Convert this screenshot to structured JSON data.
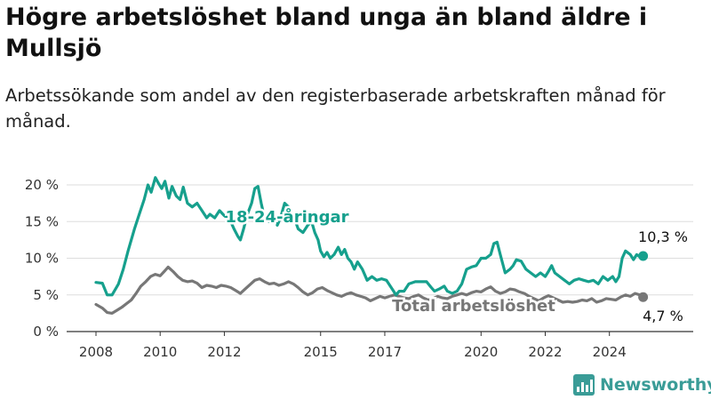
{
  "title": "Högre arbetslöshet bland unga än bland äldre i Mullsjö",
  "subtitle": "Arbetssökande som andel av den registerbaserade arbetskraften månad för månad.",
  "brand": {
    "name": "Newsworthy",
    "color": "#3a9c97"
  },
  "chart_data": {
    "type": "line",
    "ylim": [
      0,
      21.5
    ],
    "yticks": [
      0,
      5,
      10,
      15,
      20
    ],
    "ytick_labels": [
      "0 %",
      "5 %",
      "10 %",
      "15 %",
      "20 %"
    ],
    "xlim": [
      2008.0,
      2025.67
    ],
    "xticks": [
      2008,
      2010,
      2012,
      2015,
      2017,
      2020,
      2022,
      2024
    ],
    "xtick_labels": [
      "2008",
      "2010",
      "2012",
      "2015",
      "2017",
      "2020",
      "2022",
      "2024"
    ],
    "grid": "horizontal",
    "series": [
      {
        "name": "18-24-åringar",
        "color": "#16a08d",
        "end_label": "10,3 %",
        "points": [
          [
            2008.0,
            6.7
          ],
          [
            2008.2,
            6.6
          ],
          [
            2008.35,
            5.0
          ],
          [
            2008.5,
            5.0
          ],
          [
            2008.7,
            6.5
          ],
          [
            2008.85,
            8.5
          ],
          [
            2009.0,
            11.0
          ],
          [
            2009.2,
            14.0
          ],
          [
            2009.35,
            16.0
          ],
          [
            2009.5,
            18.0
          ],
          [
            2009.62,
            20.0
          ],
          [
            2009.72,
            19.0
          ],
          [
            2009.85,
            21.0
          ],
          [
            2009.95,
            20.2
          ],
          [
            2010.05,
            19.5
          ],
          [
            2010.15,
            20.5
          ],
          [
            2010.27,
            18.2
          ],
          [
            2010.37,
            19.8
          ],
          [
            2010.5,
            18.5
          ],
          [
            2010.62,
            18.0
          ],
          [
            2010.72,
            19.7
          ],
          [
            2010.85,
            17.5
          ],
          [
            2011.0,
            17.0
          ],
          [
            2011.15,
            17.5
          ],
          [
            2011.3,
            16.5
          ],
          [
            2011.45,
            15.5
          ],
          [
            2011.55,
            16.0
          ],
          [
            2011.7,
            15.5
          ],
          [
            2011.85,
            16.5
          ],
          [
            2012.0,
            15.8
          ],
          [
            2012.1,
            15.5
          ],
          [
            2012.2,
            15.0
          ],
          [
            2012.3,
            14.0
          ],
          [
            2012.42,
            13.0
          ],
          [
            2012.5,
            12.5
          ],
          [
            2012.6,
            14.0
          ],
          [
            2012.72,
            16.0
          ],
          [
            2012.85,
            17.5
          ],
          [
            2012.95,
            19.5
          ],
          [
            2013.05,
            19.8
          ],
          [
            2013.15,
            17.5
          ],
          [
            2013.25,
            15.5
          ],
          [
            2013.4,
            15.0
          ],
          [
            2013.55,
            16.0
          ],
          [
            2013.65,
            14.5
          ],
          [
            2013.75,
            15.5
          ],
          [
            2013.88,
            17.5
          ],
          [
            2014.0,
            17.0
          ],
          [
            2014.1,
            16.0
          ],
          [
            2014.2,
            15.2
          ],
          [
            2014.3,
            14.0
          ],
          [
            2014.45,
            13.5
          ],
          [
            2014.6,
            14.5
          ],
          [
            2014.72,
            15.0
          ],
          [
            2014.82,
            13.5
          ],
          [
            2014.92,
            12.5
          ],
          [
            2015.0,
            11.0
          ],
          [
            2015.1,
            10.2
          ],
          [
            2015.2,
            10.8
          ],
          [
            2015.3,
            10.0
          ],
          [
            2015.42,
            10.5
          ],
          [
            2015.55,
            11.5
          ],
          [
            2015.65,
            10.5
          ],
          [
            2015.75,
            11.2
          ],
          [
            2015.85,
            10.0
          ],
          [
            2015.95,
            9.5
          ],
          [
            2016.05,
            8.5
          ],
          [
            2016.15,
            9.5
          ],
          [
            2016.3,
            8.5
          ],
          [
            2016.45,
            7.0
          ],
          [
            2016.6,
            7.5
          ],
          [
            2016.75,
            7.0
          ],
          [
            2016.9,
            7.2
          ],
          [
            2017.05,
            7.0
          ],
          [
            2017.2,
            6.0
          ],
          [
            2017.35,
            5.0
          ],
          [
            2017.45,
            5.5
          ],
          [
            2017.6,
            5.5
          ],
          [
            2017.75,
            6.5
          ],
          [
            2017.95,
            6.8
          ],
          [
            2018.15,
            6.8
          ],
          [
            2018.3,
            6.8
          ],
          [
            2018.45,
            6.0
          ],
          [
            2018.55,
            5.5
          ],
          [
            2018.7,
            5.8
          ],
          [
            2018.85,
            6.2
          ],
          [
            2018.95,
            5.5
          ],
          [
            2019.1,
            5.2
          ],
          [
            2019.25,
            5.5
          ],
          [
            2019.4,
            6.5
          ],
          [
            2019.55,
            8.5
          ],
          [
            2019.7,
            8.8
          ],
          [
            2019.85,
            9.0
          ],
          [
            2020.0,
            10.0
          ],
          [
            2020.15,
            10.0
          ],
          [
            2020.3,
            10.5
          ],
          [
            2020.4,
            12.0
          ],
          [
            2020.5,
            12.2
          ],
          [
            2020.6,
            10.5
          ],
          [
            2020.75,
            8.0
          ],
          [
            2020.9,
            8.5
          ],
          [
            2021.0,
            9.0
          ],
          [
            2021.1,
            9.8
          ],
          [
            2021.25,
            9.6
          ],
          [
            2021.4,
            8.5
          ],
          [
            2021.55,
            8.0
          ],
          [
            2021.7,
            7.5
          ],
          [
            2021.85,
            8.0
          ],
          [
            2022.0,
            7.5
          ],
          [
            2022.1,
            8.2
          ],
          [
            2022.2,
            9.0
          ],
          [
            2022.3,
            8.0
          ],
          [
            2022.45,
            7.5
          ],
          [
            2022.6,
            7.0
          ],
          [
            2022.75,
            6.5
          ],
          [
            2022.9,
            7.0
          ],
          [
            2023.05,
            7.2
          ],
          [
            2023.2,
            7.0
          ],
          [
            2023.35,
            6.8
          ],
          [
            2023.5,
            7.0
          ],
          [
            2023.65,
            6.5
          ],
          [
            2023.8,
            7.5
          ],
          [
            2023.95,
            7.0
          ],
          [
            2024.1,
            7.5
          ],
          [
            2024.2,
            6.8
          ],
          [
            2024.3,
            7.5
          ],
          [
            2024.4,
            10.0
          ],
          [
            2024.5,
            11.0
          ],
          [
            2024.65,
            10.5
          ],
          [
            2024.75,
            9.8
          ],
          [
            2024.85,
            10.5
          ],
          [
            2024.95,
            10.2
          ],
          [
            2025.05,
            10.3
          ]
        ]
      },
      {
        "name": "Total arbetslöshet",
        "color": "#777777",
        "end_label": "4,7 %",
        "points": [
          [
            2008.0,
            3.7
          ],
          [
            2008.2,
            3.2
          ],
          [
            2008.35,
            2.6
          ],
          [
            2008.5,
            2.5
          ],
          [
            2008.65,
            2.9
          ],
          [
            2008.8,
            3.3
          ],
          [
            2008.95,
            3.8
          ],
          [
            2009.1,
            4.3
          ],
          [
            2009.25,
            5.2
          ],
          [
            2009.4,
            6.2
          ],
          [
            2009.55,
            6.8
          ],
          [
            2009.7,
            7.5
          ],
          [
            2009.85,
            7.8
          ],
          [
            2010.0,
            7.6
          ],
          [
            2010.15,
            8.3
          ],
          [
            2010.25,
            8.8
          ],
          [
            2010.4,
            8.2
          ],
          [
            2010.55,
            7.5
          ],
          [
            2010.7,
            7.0
          ],
          [
            2010.85,
            6.8
          ],
          [
            2011.0,
            6.9
          ],
          [
            2011.15,
            6.6
          ],
          [
            2011.3,
            6.0
          ],
          [
            2011.45,
            6.3
          ],
          [
            2011.6,
            6.2
          ],
          [
            2011.75,
            6.0
          ],
          [
            2011.9,
            6.3
          ],
          [
            2012.05,
            6.2
          ],
          [
            2012.2,
            6.0
          ],
          [
            2012.35,
            5.6
          ],
          [
            2012.5,
            5.2
          ],
          [
            2012.65,
            5.8
          ],
          [
            2012.8,
            6.4
          ],
          [
            2012.95,
            7.0
          ],
          [
            2013.1,
            7.2
          ],
          [
            2013.25,
            6.8
          ],
          [
            2013.4,
            6.5
          ],
          [
            2013.55,
            6.6
          ],
          [
            2013.7,
            6.3
          ],
          [
            2013.85,
            6.5
          ],
          [
            2014.0,
            6.8
          ],
          [
            2014.15,
            6.5
          ],
          [
            2014.3,
            6.0
          ],
          [
            2014.45,
            5.4
          ],
          [
            2014.6,
            5.0
          ],
          [
            2014.75,
            5.3
          ],
          [
            2014.9,
            5.8
          ],
          [
            2015.05,
            6.0
          ],
          [
            2015.2,
            5.6
          ],
          [
            2015.35,
            5.3
          ],
          [
            2015.5,
            5.0
          ],
          [
            2015.65,
            4.8
          ],
          [
            2015.8,
            5.1
          ],
          [
            2015.95,
            5.3
          ],
          [
            2016.1,
            5.0
          ],
          [
            2016.25,
            4.8
          ],
          [
            2016.4,
            4.6
          ],
          [
            2016.55,
            4.2
          ],
          [
            2016.7,
            4.5
          ],
          [
            2016.85,
            4.8
          ],
          [
            2017.0,
            4.6
          ],
          [
            2017.15,
            4.8
          ],
          [
            2017.3,
            5.0
          ],
          [
            2017.45,
            4.8
          ],
          [
            2017.6,
            4.6
          ],
          [
            2017.75,
            4.5
          ],
          [
            2017.9,
            4.8
          ],
          [
            2018.05,
            5.0
          ],
          [
            2018.2,
            4.6
          ],
          [
            2018.35,
            4.3
          ],
          [
            2018.5,
            4.5
          ],
          [
            2018.65,
            4.8
          ],
          [
            2018.8,
            4.6
          ],
          [
            2018.95,
            4.5
          ],
          [
            2019.1,
            4.8
          ],
          [
            2019.25,
            5.0
          ],
          [
            2019.4,
            5.2
          ],
          [
            2019.55,
            5.0
          ],
          [
            2019.7,
            5.3
          ],
          [
            2019.85,
            5.5
          ],
          [
            2020.0,
            5.4
          ],
          [
            2020.15,
            5.8
          ],
          [
            2020.3,
            6.1
          ],
          [
            2020.45,
            5.5
          ],
          [
            2020.6,
            5.2
          ],
          [
            2020.75,
            5.4
          ],
          [
            2020.9,
            5.8
          ],
          [
            2021.05,
            5.7
          ],
          [
            2021.2,
            5.4
          ],
          [
            2021.35,
            5.2
          ],
          [
            2021.5,
            4.8
          ],
          [
            2021.65,
            4.5
          ],
          [
            2021.8,
            4.2
          ],
          [
            2021.95,
            4.6
          ],
          [
            2022.1,
            4.9
          ],
          [
            2022.25,
            4.6
          ],
          [
            2022.4,
            4.3
          ],
          [
            2022.55,
            4.0
          ],
          [
            2022.7,
            4.1
          ],
          [
            2022.85,
            4.0
          ],
          [
            2023.0,
            4.1
          ],
          [
            2023.15,
            4.3
          ],
          [
            2023.3,
            4.2
          ],
          [
            2023.45,
            4.5
          ],
          [
            2023.6,
            4.0
          ],
          [
            2023.75,
            4.2
          ],
          [
            2023.9,
            4.5
          ],
          [
            2024.05,
            4.4
          ],
          [
            2024.2,
            4.3
          ],
          [
            2024.35,
            4.7
          ],
          [
            2024.5,
            5.0
          ],
          [
            2024.65,
            4.8
          ],
          [
            2024.8,
            5.2
          ],
          [
            2024.95,
            5.0
          ],
          [
            2025.05,
            4.7
          ]
        ]
      }
    ]
  }
}
